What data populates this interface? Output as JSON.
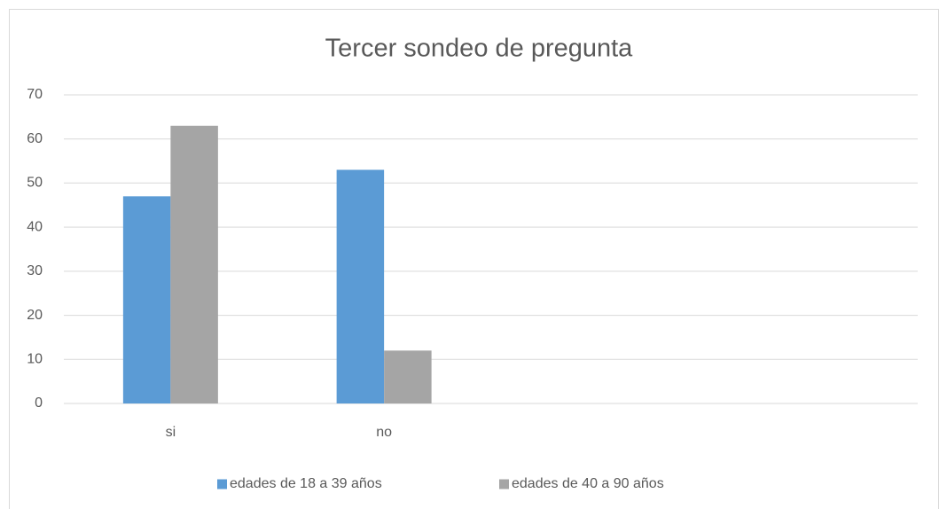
{
  "chart_data": {
    "type": "bar",
    "title": "Tercer sondeo de pregunta",
    "categories": [
      "si",
      "no",
      null,
      null
    ],
    "series": [
      {
        "name": "edades de 18 a 39 años",
        "color": "#5b9bd5",
        "values": [
          47,
          53,
          null,
          null
        ]
      },
      {
        "name": "edades de 40 a 90 años",
        "color": "#a5a5a5",
        "values": [
          63,
          12,
          null,
          null
        ]
      }
    ],
    "ylim": [
      0,
      70
    ],
    "yticks": [
      0,
      10,
      20,
      30,
      40,
      50,
      60,
      70
    ],
    "grid": true,
    "legend": "bottom"
  }
}
